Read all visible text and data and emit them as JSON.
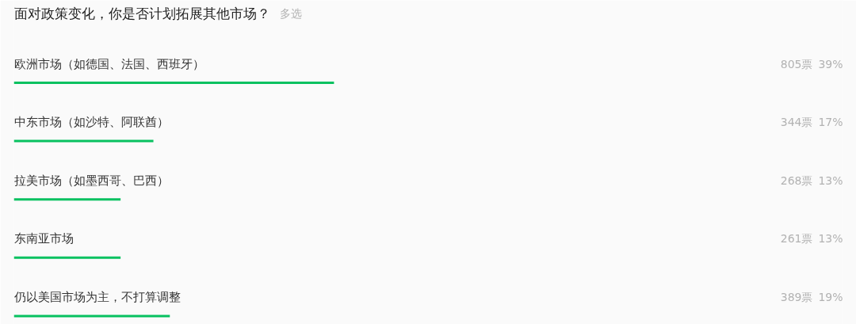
{
  "chart_data": {
    "type": "bar",
    "orientation": "horizontal",
    "title": "面对政策变化，你是否计划拓展其他市场？",
    "subtitle": "多选",
    "categories": [
      "欧洲市场（如德国、法国、西班牙）",
      "中东市场（如沙特、阿联酋）",
      "拉美市场（如墨西哥、巴西）",
      "东南亚市场",
      "仍以美国市场为主，不打算调整"
    ],
    "values": [
      39,
      17,
      13,
      13,
      19
    ],
    "value_labels": [
      "805票 39%",
      "344票 17%",
      "268票 13%",
      "261票 13%",
      "389票 19%"
    ],
    "color": "#07c160",
    "tick_labels": "y"
  }
}
